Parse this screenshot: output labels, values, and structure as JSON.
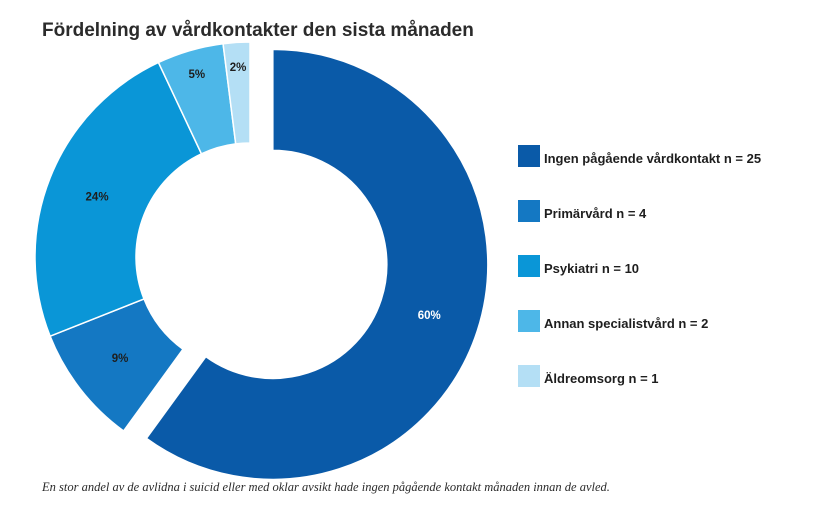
{
  "chart_data": {
    "type": "pie",
    "title": "Fördelning av vårdkontakter den sista månaden",
    "categories": [
      "Ingen pågående vårdkontakt n = 25",
      "Primärvård n = 4",
      "Psykiatri n = 10",
      "Annan specialistvård n = 2",
      "Äldreomsorg n = 1"
    ],
    "values": [
      60,
      9,
      24,
      5,
      2
    ],
    "counts": [
      25,
      4,
      10,
      2,
      1
    ],
    "data_labels": [
      "60%",
      "9%",
      "24%",
      "5%",
      "2%"
    ],
    "colors": [
      "#0a5aa8",
      "#1478c3",
      "#0a96d7",
      "#4db7e8",
      "#b4dff5"
    ],
    "exploded_slice": "Ingen pågående vårdkontakt n = 25",
    "donut": true,
    "legend_position": "right"
  },
  "caption": "En stor andel av de avlidna i suicid eller med oklar avsikt hade ingen pågående kontakt månaden innan de avled."
}
